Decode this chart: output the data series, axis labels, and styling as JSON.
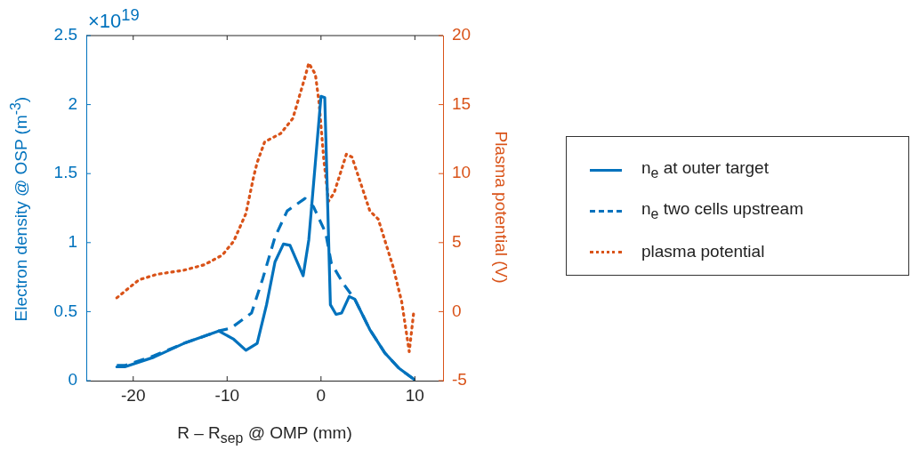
{
  "chart_data": {
    "type": "line",
    "xlabel": "R – R$_{sep}$ @ OMP (mm)",
    "ylabel": "Electron density @ OSP (m$^{-3}$)",
    "y2label": "Plasma potential (V)",
    "annotations": [
      "×10$^{19}$"
    ],
    "xlim": [
      -25,
      13
    ],
    "xticks": [
      -20,
      -10,
      0,
      10
    ],
    "ylim": [
      0,
      2.5
    ],
    "yticks": [
      0,
      0.5,
      1,
      1.5,
      2,
      2.5
    ],
    "y2lim": [
      -5,
      20
    ],
    "y2ticks": [
      -5,
      0,
      5,
      10,
      15,
      20
    ],
    "legend": "right",
    "grid": false,
    "series": [
      {
        "name": "n$_{e}$ at outer target",
        "color": "#0072bd",
        "line_style": "solid",
        "x": [
          -21.75,
          -20.9,
          -17.8,
          -14.6,
          -12.1,
          -10.9,
          -9.3,
          -8.0,
          -6.8,
          -5.8,
          -4.9,
          -4.0,
          -3.3,
          -1.9,
          -1.3,
          0,
          0.4,
          1.0,
          1.6,
          2.2,
          3.0,
          3.6,
          5.2,
          6.8,
          8.3,
          9.9
        ],
        "values": [
          0.1,
          0.1,
          0.17,
          0.27,
          0.33,
          0.36,
          0.3,
          0.22,
          0.27,
          0.55,
          0.86,
          0.99,
          0.98,
          0.76,
          1.02,
          2.06,
          2.05,
          0.55,
          0.48,
          0.49,
          0.61,
          0.59,
          0.37,
          0.2,
          0.09,
          0.01
        ]
      },
      {
        "name": "n$_{e}$ two cells upstream",
        "color": "#0072bd",
        "line_style": "dashed",
        "x": [
          -21.75,
          -20.9,
          -17.8,
          -14.6,
          -12.1,
          -10.9,
          -9.6,
          -7.4,
          -6.2,
          -4.9,
          -3.6,
          -1.7,
          -0.8,
          0.5,
          1.1,
          2.4,
          3.6,
          5.2,
          6.8,
          8.3,
          9.9
        ],
        "values": [
          0.11,
          0.11,
          0.18,
          0.27,
          0.33,
          0.36,
          0.38,
          0.49,
          0.74,
          1.04,
          1.23,
          1.32,
          1.26,
          1.07,
          0.85,
          0.7,
          0.59,
          0.37,
          0.2,
          0.09,
          0.01
        ]
      },
      {
        "name": "plasma potential",
        "color": "#d95319",
        "line_style": "dotted",
        "axis": "y2",
        "x": [
          -21.75,
          -19.4,
          -17.5,
          -14.6,
          -12.4,
          -10.5,
          -9.3,
          -8.0,
          -7.2,
          -6.8,
          -6.0,
          -4.3,
          -3.0,
          -1.7,
          -1.3,
          -0.6,
          -0.2,
          0.3,
          0.8,
          1.4,
          2.7,
          3.3,
          5.2,
          6.1,
          7.7,
          8.6,
          9.4,
          9.9
        ],
        "values": [
          1.0,
          2.3,
          2.7,
          3.0,
          3.4,
          4.1,
          5.1,
          7.1,
          9.7,
          10.8,
          12.3,
          12.9,
          14.0,
          17.0,
          18.0,
          17.2,
          15.1,
          11.0,
          8.0,
          8.6,
          11.4,
          11.2,
          7.3,
          6.7,
          3.2,
          0.7,
          -2.9,
          0.1
        ]
      }
    ]
  }
}
